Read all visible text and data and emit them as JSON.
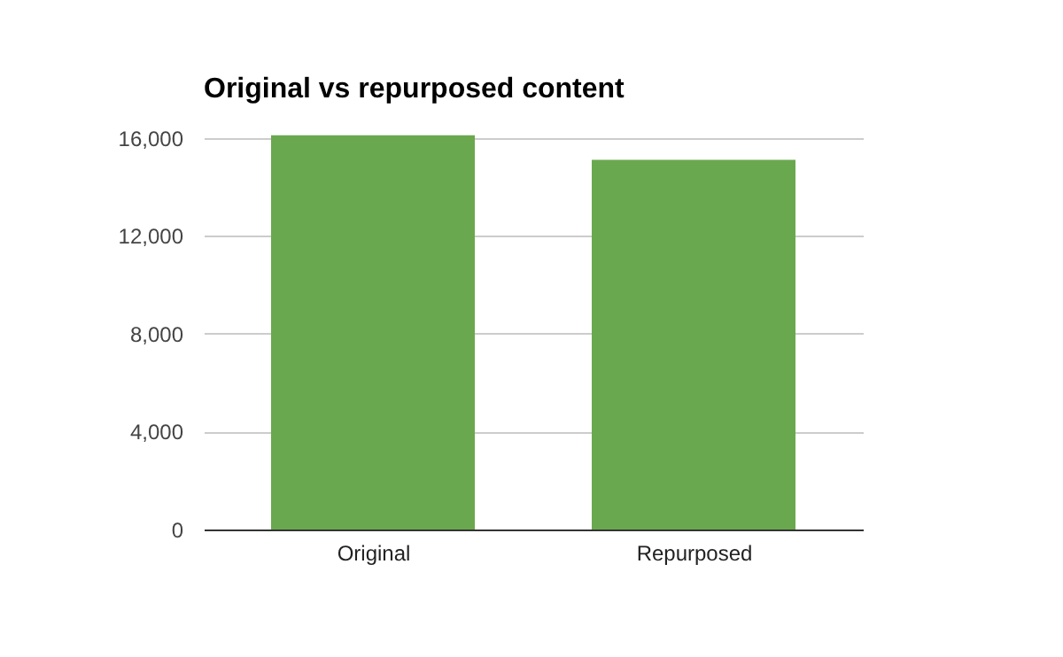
{
  "chart_data": {
    "type": "bar",
    "title": "Original vs repurposed content",
    "categories": [
      "Original",
      "Repurposed"
    ],
    "values": [
      16100,
      15100
    ],
    "color": "#6aa84f",
    "ylim": [
      0,
      16200
    ],
    "yticks": [
      0,
      {
        "value": 4000,
        "label": "4,000"
      },
      {
        "value": 8000,
        "label": "8,000"
      },
      {
        "value": 12000,
        "label": "12,000"
      },
      {
        "value": 16000,
        "label": "16,000"
      }
    ],
    "grid": "y"
  }
}
